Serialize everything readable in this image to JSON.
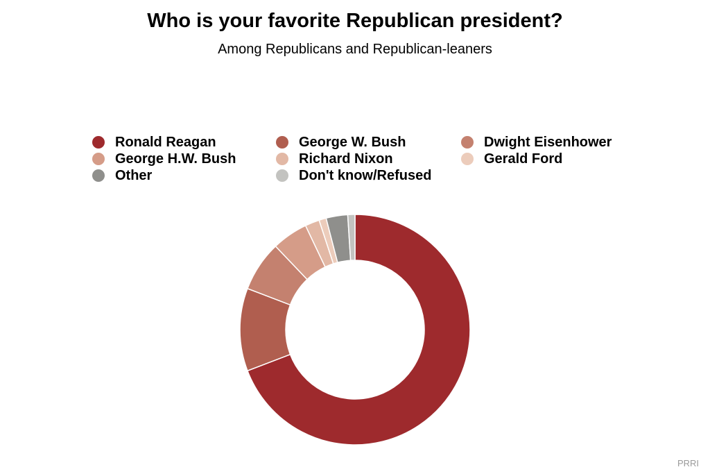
{
  "chart_data": {
    "type": "pie",
    "variant": "donut",
    "title": "Who is your favorite Republican president?",
    "subtitle": "Among Republicans and Republican-leaners",
    "legend_position": "top",
    "start": "12 o'clock, clockwise",
    "slices": [
      {
        "name": "Ronald Reagan",
        "value": 68.5,
        "color": "#9e2a2d"
      },
      {
        "name": "George W. Bush",
        "value": 11.5,
        "color": "#b05e4f"
      },
      {
        "name": "Dwight Eisenhower",
        "value": 7.0,
        "color": "#c4816f"
      },
      {
        "name": "George H.W. Bush",
        "value": 5.0,
        "color": "#d59c88"
      },
      {
        "name": "Richard Nixon",
        "value": 2.0,
        "color": "#e2b8a5"
      },
      {
        "name": "Gerald Ford",
        "value": 1.0,
        "color": "#ecccbb"
      },
      {
        "name": "Other",
        "value": 3.0,
        "color": "#8f8f8c"
      },
      {
        "name": "Don't know/Refused",
        "value": 1.0,
        "color": "#c3c3c0"
      }
    ]
  },
  "source": "PRRI"
}
